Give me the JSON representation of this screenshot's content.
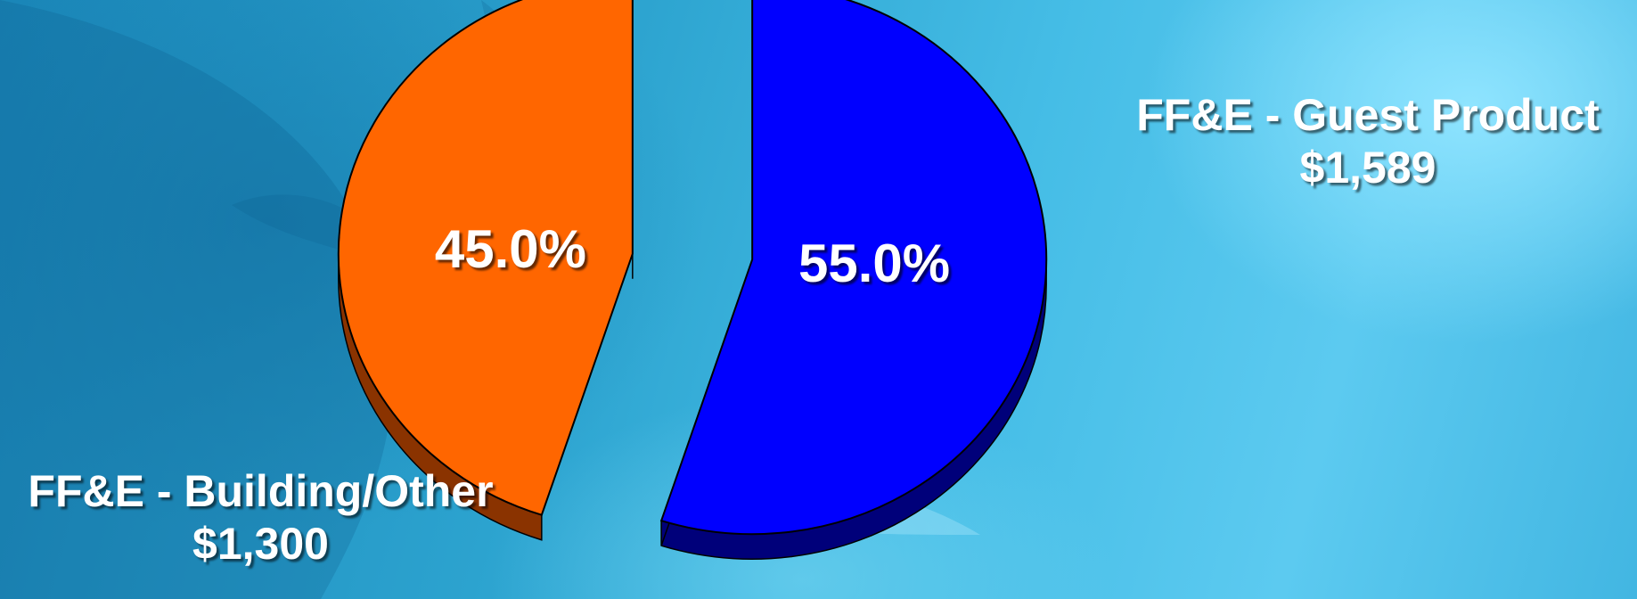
{
  "chart_data": {
    "type": "pie",
    "title": "",
    "slices": [
      {
        "name": "FF&E - Building/Other",
        "value_label": "$1,300",
        "value": 1300,
        "percent": 45.0,
        "percent_label": "45.0%",
        "color": "#ff6600",
        "side_color": "#8a3300"
      },
      {
        "name": "FF&E - Guest Product",
        "value_label": "$1,589",
        "value": 1589,
        "percent": 55.0,
        "percent_label": "55.0%",
        "color": "#0000ff",
        "side_color": "#00007a"
      }
    ],
    "exploded": true,
    "style": "3d"
  }
}
